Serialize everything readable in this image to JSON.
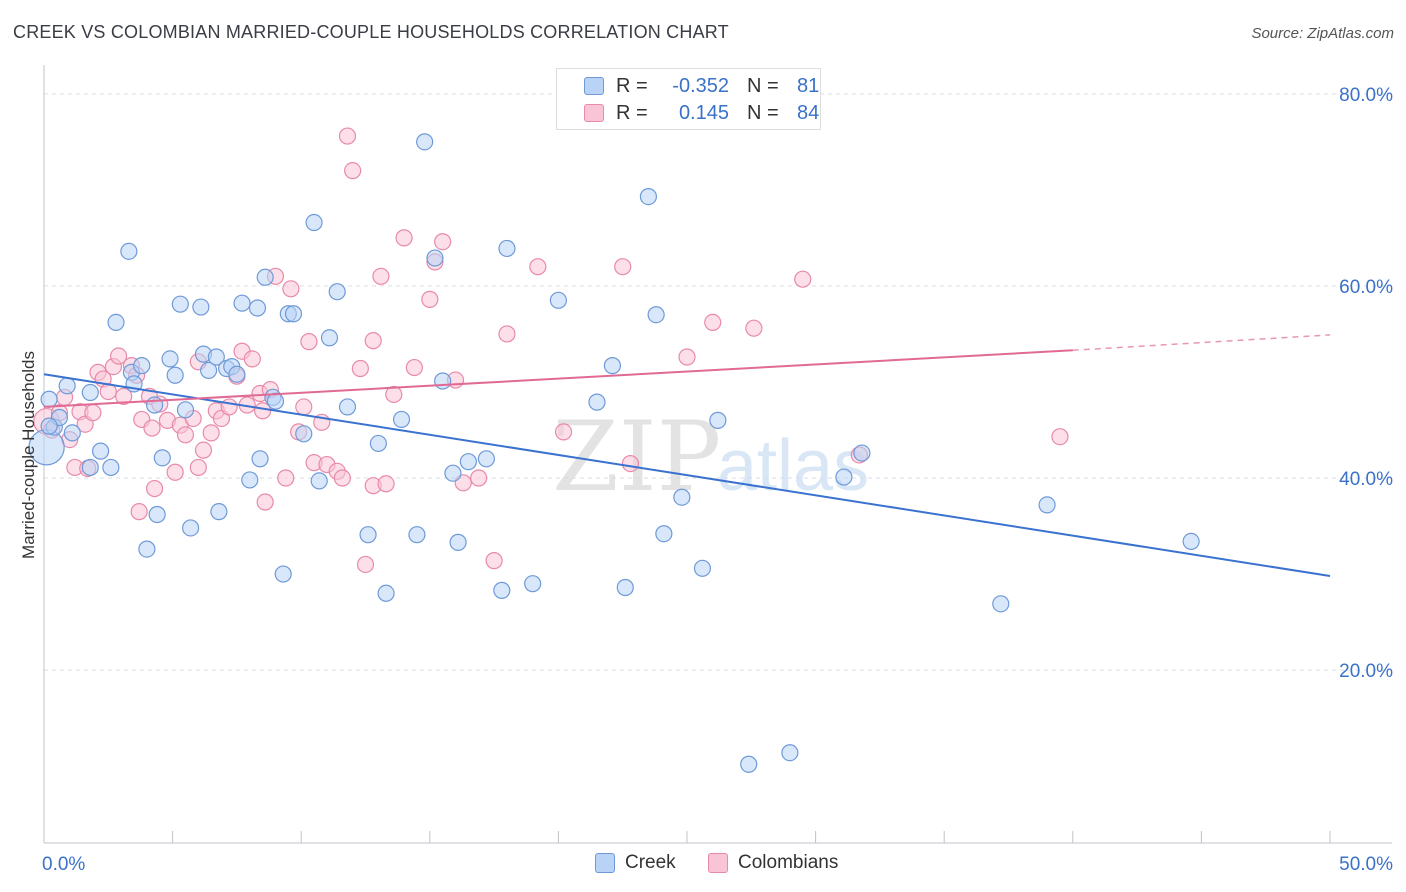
{
  "title": "CREEK VS COLOMBIAN MARRIED-COUPLE HOUSEHOLDS CORRELATION CHART",
  "source": "Source: ZipAtlas.com",
  "watermark": {
    "zip": "ZIP",
    "atlas": "atlas"
  },
  "legend_top": [
    {
      "r_label": "R =",
      "r_value": "-0.352",
      "n_label": "N =",
      "n_value": "81"
    },
    {
      "r_label": "R =",
      "r_value": "0.145",
      "n_label": "N =",
      "n_value": "84"
    }
  ],
  "legend_bottom": [
    "Creek",
    "Colombians"
  ],
  "colors": {
    "creek_fill": "#b8d3f5",
    "creek_stroke": "#6f9ad8",
    "creek_line": "#3a72d0",
    "colombian_fill": "#f9c4d5",
    "colombian_stroke": "#e88aaa",
    "colombian_line": "#e06a95",
    "tick_label": "#3a72c8"
  },
  "chart_data": {
    "type": "scatter",
    "title": "CREEK VS COLOMBIAN MARRIED-COUPLE HOUSEHOLDS CORRELATION CHART",
    "xlabel": "",
    "ylabel": "Married-couple Households",
    "xlim": [
      0,
      50
    ],
    "ylim": [
      2,
      83
    ],
    "x_tick_labels": [
      {
        "value": 0,
        "label": "0.0%"
      },
      {
        "value": 50,
        "label": "50.0%"
      }
    ],
    "y_tick_labels": [
      {
        "value": 20,
        "label": "20.0%"
      },
      {
        "value": 40,
        "label": "40.0%"
      },
      {
        "value": 60,
        "label": "60.0%"
      },
      {
        "value": 80,
        "label": "80.0%"
      }
    ],
    "grid": "horizontal dashed",
    "legend_position": "top-center",
    "series": [
      {
        "name": "Creek",
        "trend": {
          "x0": 0,
          "y0": 50.8,
          "x1": 50,
          "y1": 29.8
        },
        "points": [
          [
            0.1,
            43.2,
            2.2
          ],
          [
            0.2,
            48.2,
            1
          ],
          [
            0.4,
            45.3,
            1
          ],
          [
            0.6,
            46.3,
            1
          ],
          [
            0.9,
            49.6,
            1
          ],
          [
            1.1,
            44.7,
            1
          ],
          [
            1.8,
            48.9,
            1
          ],
          [
            2.2,
            42.8,
            1
          ],
          [
            2.6,
            41.1,
            1
          ],
          [
            1.8,
            41.1,
            1
          ],
          [
            2.8,
            56.2,
            1
          ],
          [
            3.3,
            63.6,
            1
          ],
          [
            3.4,
            51.0,
            1
          ],
          [
            3.5,
            49.8,
            1
          ],
          [
            3.8,
            51.7,
            1
          ],
          [
            4.0,
            32.6,
            1
          ],
          [
            4.3,
            47.6,
            1
          ],
          [
            4.4,
            36.2,
            1
          ],
          [
            4.6,
            42.1,
            1
          ],
          [
            4.9,
            52.4,
            1
          ],
          [
            5.1,
            50.7,
            1
          ],
          [
            5.3,
            58.1,
            1
          ],
          [
            5.5,
            47.1,
            1
          ],
          [
            5.7,
            34.8,
            1
          ],
          [
            6.1,
            57.8,
            1
          ],
          [
            6.2,
            52.9,
            1
          ],
          [
            6.4,
            51.2,
            1
          ],
          [
            6.7,
            52.6,
            1
          ],
          [
            6.8,
            36.5,
            1
          ],
          [
            7.1,
            51.4,
            1
          ],
          [
            7.3,
            51.6,
            1
          ],
          [
            7.5,
            50.8,
            1
          ],
          [
            7.7,
            58.2,
            1
          ],
          [
            8.0,
            39.8,
            1
          ],
          [
            8.3,
            57.7,
            1
          ],
          [
            8.4,
            42.0,
            1
          ],
          [
            8.6,
            60.9,
            1
          ],
          [
            8.9,
            48.4,
            1
          ],
          [
            9.0,
            48.0,
            1
          ],
          [
            9.5,
            57.1,
            1
          ],
          [
            9.7,
            57.1,
            1
          ],
          [
            10.1,
            44.6,
            1
          ],
          [
            10.5,
            66.6,
            1
          ],
          [
            10.7,
            39.7,
            1
          ],
          [
            11.1,
            54.6,
            1
          ],
          [
            11.4,
            59.4,
            1
          ],
          [
            11.8,
            47.4,
            1
          ],
          [
            12.6,
            34.1,
            1
          ],
          [
            13.0,
            43.6,
            1
          ],
          [
            13.3,
            28.0,
            1
          ],
          [
            13.9,
            46.1,
            1
          ],
          [
            14.5,
            34.1,
            1
          ],
          [
            14.8,
            75.0,
            1
          ],
          [
            15.2,
            62.9,
            1
          ],
          [
            15.5,
            50.1,
            1
          ],
          [
            15.9,
            40.5,
            1
          ],
          [
            16.1,
            33.3,
            1
          ],
          [
            16.5,
            41.7,
            1
          ],
          [
            17.2,
            42.0,
            1
          ],
          [
            17.8,
            28.3,
            1
          ],
          [
            18.0,
            63.9,
            1
          ],
          [
            19.0,
            29.0,
            1
          ],
          [
            20.0,
            58.5,
            1
          ],
          [
            21.5,
            47.9,
            1
          ],
          [
            22.1,
            51.7,
            1
          ],
          [
            22.6,
            28.6,
            1
          ],
          [
            23.5,
            69.3,
            1
          ],
          [
            23.8,
            57.0,
            1
          ],
          [
            24.1,
            34.2,
            1
          ],
          [
            24.8,
            38.0,
            1
          ],
          [
            25.6,
            30.6,
            1
          ],
          [
            26.2,
            46.0,
            1
          ],
          [
            27.4,
            10.2,
            1
          ],
          [
            29.0,
            11.4,
            1
          ],
          [
            31.1,
            40.1,
            1
          ],
          [
            31.8,
            42.6,
            1
          ],
          [
            37.2,
            26.9,
            1
          ],
          [
            39.0,
            37.2,
            1
          ],
          [
            44.6,
            33.4,
            1
          ],
          [
            0.2,
            45.4,
            1
          ],
          [
            9.3,
            30.0,
            1
          ]
        ]
      },
      {
        "name": "Colombians",
        "trend": {
          "x0": 0,
          "y0": 47.4,
          "x1": 40,
          "y1": 53.3,
          "dash_x1": 50,
          "dash_y1": 54.9
        },
        "points": [
          [
            0.1,
            45.9,
            1.6
          ],
          [
            0.3,
            45.0,
            1
          ],
          [
            0.6,
            46.8,
            1
          ],
          [
            0.8,
            48.4,
            1
          ],
          [
            1.0,
            44.0,
            1
          ],
          [
            1.2,
            41.1,
            1
          ],
          [
            1.4,
            46.9,
            1
          ],
          [
            1.6,
            45.6,
            1
          ],
          [
            1.9,
            46.8,
            1
          ],
          [
            2.1,
            51.0,
            1
          ],
          [
            2.3,
            50.3,
            1
          ],
          [
            2.5,
            49.0,
            1
          ],
          [
            2.7,
            51.6,
            1
          ],
          [
            2.9,
            52.7,
            1
          ],
          [
            3.1,
            48.5,
            1
          ],
          [
            3.4,
            51.7,
            1
          ],
          [
            3.6,
            50.7,
            1
          ],
          [
            3.8,
            46.1,
            1
          ],
          [
            4.1,
            48.5,
            1
          ],
          [
            4.3,
            38.9,
            1
          ],
          [
            4.5,
            47.7,
            1
          ],
          [
            4.8,
            46.0,
            1
          ],
          [
            5.1,
            40.6,
            1
          ],
          [
            5.3,
            45.5,
            1
          ],
          [
            5.5,
            44.5,
            1
          ],
          [
            5.8,
            46.2,
            1
          ],
          [
            6.0,
            52.1,
            1
          ],
          [
            6.2,
            42.9,
            1
          ],
          [
            6.5,
            44.7,
            1
          ],
          [
            6.7,
            47.0,
            1
          ],
          [
            6.9,
            46.2,
            1
          ],
          [
            7.2,
            47.4,
            1
          ],
          [
            7.5,
            50.6,
            1
          ],
          [
            7.7,
            53.2,
            1
          ],
          [
            7.9,
            47.6,
            1
          ],
          [
            8.1,
            52.4,
            1
          ],
          [
            8.4,
            48.8,
            1
          ],
          [
            8.6,
            37.5,
            1
          ],
          [
            8.8,
            49.2,
            1
          ],
          [
            9.0,
            61.0,
            1
          ],
          [
            9.4,
            40.0,
            1
          ],
          [
            9.6,
            59.7,
            1
          ],
          [
            9.9,
            44.8,
            1
          ],
          [
            10.1,
            47.4,
            1
          ],
          [
            10.3,
            54.2,
            1
          ],
          [
            10.5,
            41.6,
            1
          ],
          [
            10.8,
            45.8,
            1
          ],
          [
            11.0,
            41.4,
            1
          ],
          [
            11.4,
            40.7,
            1
          ],
          [
            11.6,
            40.0,
            1
          ],
          [
            11.8,
            75.6,
            1
          ],
          [
            12.0,
            72.0,
            1
          ],
          [
            12.3,
            51.4,
            1
          ],
          [
            12.5,
            31.0,
            1
          ],
          [
            12.8,
            39.2,
            1
          ],
          [
            13.1,
            61.0,
            1
          ],
          [
            13.3,
            39.4,
            1
          ],
          [
            13.6,
            48.7,
            1
          ],
          [
            14.0,
            65.0,
            1
          ],
          [
            14.4,
            51.5,
            1
          ],
          [
            15.0,
            58.6,
            1
          ],
          [
            15.2,
            62.5,
            1
          ],
          [
            15.5,
            64.6,
            1
          ],
          [
            16.0,
            50.2,
            1
          ],
          [
            16.3,
            39.5,
            1
          ],
          [
            16.9,
            40.0,
            1
          ],
          [
            17.5,
            31.4,
            1
          ],
          [
            18.0,
            55.0,
            1
          ],
          [
            19.2,
            62.0,
            1
          ],
          [
            20.2,
            44.8,
            1
          ],
          [
            22.5,
            62.0,
            1
          ],
          [
            22.8,
            41.5,
            1
          ],
          [
            25.0,
            52.6,
            1
          ],
          [
            26.0,
            56.2,
            1
          ],
          [
            27.6,
            55.6,
            1
          ],
          [
            29.5,
            60.7,
            1
          ],
          [
            31.7,
            42.4,
            1
          ],
          [
            39.5,
            44.3,
            1
          ],
          [
            1.7,
            41.0,
            1
          ],
          [
            4.2,
            45.2,
            1
          ],
          [
            6.0,
            41.1,
            1
          ],
          [
            8.5,
            47.0,
            1
          ],
          [
            12.8,
            54.3,
            1
          ],
          [
            3.7,
            36.5,
            1
          ]
        ]
      }
    ]
  }
}
